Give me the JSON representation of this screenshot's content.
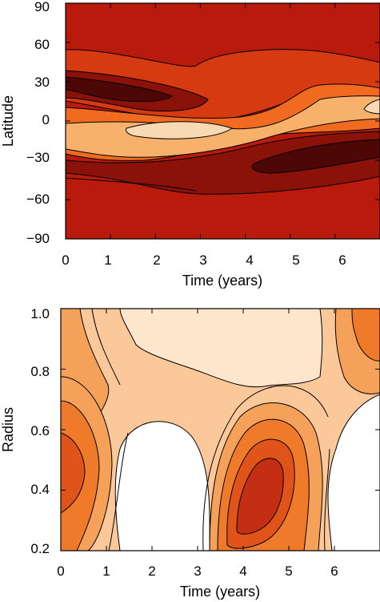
{
  "chart_data": [
    {
      "type": "heatmap",
      "panel": "top",
      "xlabel": "Time (years)",
      "ylabel": "Latitude",
      "xlim": [
        0,
        7
      ],
      "ylim": [
        -90,
        90
      ],
      "xticks": [
        0,
        1,
        2,
        3,
        4,
        5,
        6
      ],
      "yticks": [
        -90,
        -60,
        -30,
        0,
        30,
        60,
        90
      ],
      "colormap": [
        "#f9d9b3",
        "#f7b16a",
        "#f06a1f",
        "#d63a10",
        "#b81a0c",
        "#8a1209",
        "#4d0805"
      ],
      "features": [
        {
          "label": "negative-north-lobe",
          "t_range": [
            0,
            3.8
          ],
          "lat_center": 20,
          "level": "dark"
        },
        {
          "label": "equatorial-positive-band",
          "t_range": [
            0,
            7
          ],
          "lat_center": -5,
          "level": "light"
        },
        {
          "label": "south-negative-lobe",
          "t_range": [
            2.3,
            7
          ],
          "lat_center": -25,
          "level": "dark"
        }
      ]
    },
    {
      "type": "heatmap",
      "panel": "bottom",
      "xlabel": "Time (years)",
      "ylabel": "Radius",
      "xlim": [
        0,
        7
      ],
      "ylim": [
        0.2,
        1.0
      ],
      "xticks": [
        0,
        1,
        2,
        3,
        4,
        5,
        6
      ],
      "yticks": [
        0.2,
        0.4,
        0.6,
        0.8,
        1.0
      ],
      "ytick_labels": [
        "0.2",
        "0.4",
        "0.6",
        "0.8",
        "1.0"
      ],
      "colormap": [
        "#ffffff",
        "#fde6cc",
        "#fbc999",
        "#f6a15a",
        "#ef7a2a",
        "#e0541a",
        "#c42e12"
      ],
      "features": [
        {
          "label": "left-maximum",
          "t_center": 0,
          "r_center": 0.45,
          "level": "high"
        },
        {
          "label": "central-maximum",
          "t_center": 4.4,
          "r_center": 0.33,
          "level": "high"
        },
        {
          "label": "upper-right-maximum",
          "t_center": 6.5,
          "r_center": 0.95,
          "level": "mid"
        }
      ]
    }
  ],
  "ticks": {
    "top_y": [
      "90",
      "60",
      "30",
      "0",
      "−30",
      "−60",
      "−90"
    ],
    "top_x": [
      "0",
      "1",
      "2",
      "3",
      "4",
      "5",
      "6"
    ],
    "bottom_y": [
      "1.0",
      "0.8",
      "0.6",
      "0.4",
      "0.2"
    ],
    "bottom_x": [
      "0",
      "1",
      "2",
      "3",
      "4",
      "5",
      "6"
    ]
  },
  "labels": {
    "top_xlabel": "Time (years)",
    "top_ylabel": "Latitude",
    "bottom_xlabel": "Time (years)",
    "bottom_ylabel": "Radius"
  }
}
